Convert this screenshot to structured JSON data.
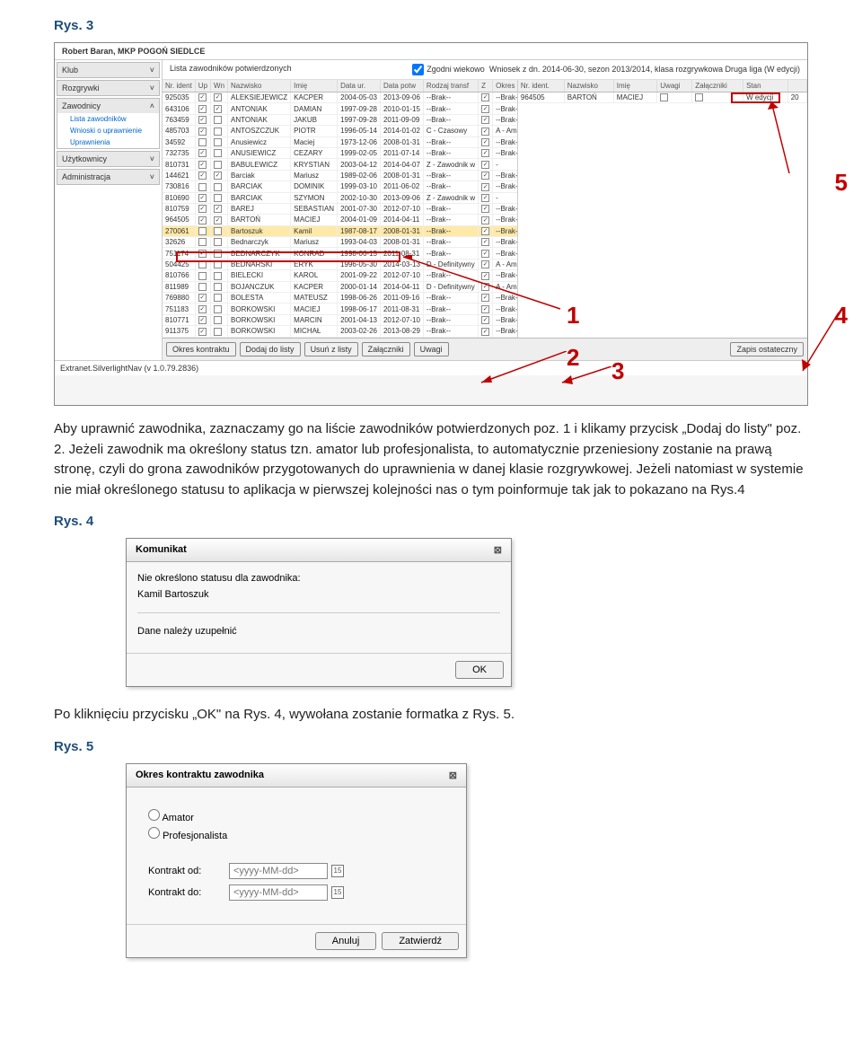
{
  "figLabel3": "Rys. 3",
  "figLabel4": "Rys. 4",
  "figLabel5": "Rys. 5",
  "appTitle": "Robert Baran, MKP POGOŃ SIEDLCE",
  "sidebar": {
    "g1": "Klub",
    "g2": "Rozgrywki",
    "g3": "Zawodnicy",
    "g3items": [
      "Lista zawodników",
      "Wnioski o uprawnienie",
      "Uprawnienia"
    ],
    "g4": "Użytkownicy",
    "g5": "Administracja"
  },
  "topRow": {
    "left": "Lista zawodników potwierdzonych",
    "chk": "Zgodni wiekowo",
    "right": "Wniosek z dn. 2014-06-30, sezon 2013/2014, klasa rozgrywkowa Druga liga (W edycji)"
  },
  "leftCols": [
    "Nr. ident",
    "Up",
    "Wn",
    "Nazwisko",
    "Imię",
    "Data ur.",
    "Data potw",
    "Rodzaj transf",
    "Z",
    "Okres kor"
  ],
  "rows": [
    [
      "925035",
      "✓",
      "✓",
      "ALEKSIEJEWICZ",
      "KACPER",
      "2004-05-03",
      "2013-09-06",
      "--Brak--",
      "✓",
      "--Brak--"
    ],
    [
      "643106",
      "✓",
      "✓",
      "ANTONIAK",
      "DAMIAN",
      "1997-09-28",
      "2010-01-15",
      "--Brak--",
      "✓",
      "--Brak--"
    ],
    [
      "763459",
      "✓",
      "",
      "ANTONIAK",
      "JAKUB",
      "1997-09-28",
      "2011-09-09",
      "--Brak--",
      "✓",
      "--Brak--"
    ],
    [
      "485703",
      "✓",
      "",
      "ANTOSZCZUK",
      "PIOTR",
      "1996-05-14",
      "2014-01-02",
      "C - Czasowy",
      "✓",
      "A - Amator"
    ],
    [
      "34592",
      "",
      "",
      "Anusiewicz",
      "Maciej",
      "1973-12-06",
      "2008-01-31",
      "--Brak--",
      "✓",
      "--Brak--"
    ],
    [
      "732735",
      "✓",
      "",
      "ANUSIEWICZ",
      "CEZARY",
      "1999-02-05",
      "2011-07-14",
      "--Brak--",
      "✓",
      "--Brak--"
    ],
    [
      "810731",
      "✓",
      "",
      "BABULEWICZ",
      "KRYSTIAN",
      "2003-04-12",
      "2014-04-07",
      "Z - Zawodnik w",
      "✓",
      "-"
    ],
    [
      "144621",
      "✓",
      "✓",
      "Barciak",
      "Mariusz",
      "1989-02-06",
      "2008-01-31",
      "--Brak--",
      "✓",
      "--Brak--"
    ],
    [
      "730816",
      "",
      "",
      "BARCIAK",
      "DOMINIK",
      "1999-03-10",
      "2011-06-02",
      "--Brak--",
      "✓",
      "--Brak--"
    ],
    [
      "810690",
      "✓",
      "",
      "BARCIAK",
      "SZYMON",
      "2002-10-30",
      "2013-09-06",
      "Z - Zawodnik w",
      "✓",
      "-"
    ],
    [
      "810759",
      "✓",
      "✓",
      "BAREJ",
      "SEBASTIAN",
      "2001-07-30",
      "2012-07-10",
      "--Brak--",
      "✓",
      "--Brak--"
    ],
    [
      "964505",
      "✓",
      "✓",
      "BARTOŃ",
      "MACIEJ",
      "2004-01-09",
      "2014-04-11",
      "--Brak--",
      "✓",
      "--Brak--"
    ],
    [
      "270061",
      "",
      "",
      "Bartoszuk",
      "Kamil",
      "1987-08-17",
      "2008-01-31",
      "--Brak--",
      "✓",
      "--Brak--"
    ],
    [
      "32626",
      "",
      "",
      "Bednarczyk",
      "Mariusz",
      "1993-04-03",
      "2008-01-31",
      "--Brak--",
      "✓",
      "--Brak--"
    ],
    [
      "751174",
      "✓",
      "",
      "BEDNARCZYK",
      "KONRAD",
      "1998-06-15",
      "2011-08-31",
      "--Brak--",
      "✓",
      "--Brak--"
    ],
    [
      "504425",
      "",
      "",
      "BEDNARSKI",
      "ERYK",
      "1996-05-30",
      "2014-03-13",
      "D - Definitywny",
      "✓",
      "A - Amator"
    ],
    [
      "810766",
      "",
      "",
      "BIELECKI",
      "KAROL",
      "2001-09-22",
      "2012-07-10",
      "--Brak--",
      "✓",
      "--Brak--"
    ],
    [
      "811989",
      "",
      "",
      "BOJANCZUK",
      "KACPER",
      "2000-01-14",
      "2014-04-11",
      "D - Definitywny",
      "✓",
      "A - Amator"
    ],
    [
      "769880",
      "✓",
      "",
      "BOLESTA",
      "MATEUSZ",
      "1998-06-26",
      "2011-09-16",
      "--Brak--",
      "✓",
      "--Brak--"
    ],
    [
      "751183",
      "✓",
      "",
      "BORKOWSKI",
      "MACIEJ",
      "1998-06-17",
      "2011-08-31",
      "--Brak--",
      "✓",
      "--Brak--"
    ],
    [
      "810771",
      "✓",
      "",
      "BORKOWSKI",
      "MARCIN",
      "2001-04-13",
      "2012-07-10",
      "--Brak--",
      "✓",
      "--Brak--"
    ],
    [
      "911375",
      "✓",
      "",
      "BORKOWSKI",
      "MICHAŁ",
      "2003-02-26",
      "2013-08-29",
      "--Brak--",
      "✓",
      "--Brak--"
    ]
  ],
  "rightCols": [
    "Nr. ident.",
    "Nazwisko",
    "Imię",
    "Uwagi",
    "Załączniki",
    "Stan",
    ""
  ],
  "rightRow": [
    "964505",
    "BARTOŃ",
    "MACIEJ",
    "",
    "",
    "W edycji",
    "20"
  ],
  "footerBtns": [
    "Okres kontraktu",
    "Dodaj do listy",
    "Usuń z listy",
    "Załączniki",
    "Uwagi"
  ],
  "footerBtnRight": "Zapis ostateczny",
  "statusBar": "Extranet.SilverlightNav (v 1.0.79.2836)",
  "para1": "Aby uprawnić zawodnika, zaznaczamy go na liście zawodników potwierdzonych poz. 1 i klikamy przycisk „Dodaj do listy\" poz. 2. Jeżeli zawodnik ma określony status tzn. amator lub  profesjonalista, to automatycznie przeniesiony zostanie na prawą stronę, czyli do grona zawodników przygotowanych  do uprawnienia w danej klasie rozgrywkowej. Jeżeli natomiast w systemie nie miał określonego statusu to aplikacja w pierwszej kolejności nas o tym poinformuje tak jak to pokazano na Rys.4",
  "dlg1": {
    "title": "Komunikat",
    "line1": "Nie określono statusu dla zawodnika:",
    "line2": "Kamil Bartoszuk",
    "line3": "Dane należy uzupełnić",
    "ok": "OK"
  },
  "para2": "Po kliknięciu przycisku „OK\" na Rys. 4, wywołana zostanie formatka z Rys. 5.",
  "dlg2": {
    "title": "Okres kontraktu zawodnika",
    "r1": "Amator",
    "r2": "Profesjonalista",
    "f1": "Kontrakt od:",
    "f2": "Kontrakt do:",
    "ph": "<yyyy-MM-dd>",
    "cal": "15",
    "b1": "Anuluj",
    "b2": "Zatwierdź"
  },
  "annot": {
    "n1": "1",
    "n2": "2",
    "n3": "3",
    "n4": "4",
    "n5": "5"
  }
}
